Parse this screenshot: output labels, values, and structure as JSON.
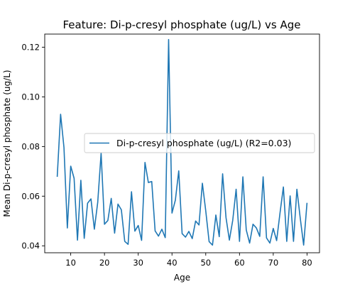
{
  "chart_data": {
    "type": "line",
    "title": "Feature: Di-p-cresyl phosphate (ug/L) vs Age",
    "xlabel": "Age",
    "ylabel": "Mean Di-p-cresyl phosphate (ug/L)",
    "xlim": [
      2.3,
      83.7
    ],
    "ylim": [
      0.0372,
      0.1253
    ],
    "xticks": [
      10,
      20,
      30,
      40,
      50,
      60,
      70,
      80
    ],
    "xtick_labels": [
      "10",
      "20",
      "30",
      "40",
      "50",
      "60",
      "70",
      "80"
    ],
    "yticks": [
      0.04,
      0.06,
      0.08,
      0.1,
      0.12
    ],
    "ytick_labels": [
      "0.04",
      "0.06",
      "0.08",
      "0.10",
      "0.12"
    ],
    "grid": false,
    "legend_position": "center-right",
    "series": [
      {
        "name": "Di-p-cresyl phosphate (ug/L) (R2=0.03)",
        "color": "#1f77b4",
        "x": [
          6,
          7,
          8,
          9,
          10,
          11,
          12,
          13,
          14,
          15,
          16,
          17,
          18,
          19,
          20,
          21,
          22,
          23,
          24,
          25,
          26,
          27,
          28,
          29,
          30,
          31,
          32,
          33,
          34,
          35,
          36,
          37,
          38,
          39,
          40,
          41,
          42,
          43,
          44,
          45,
          46,
          47,
          48,
          49,
          50,
          51,
          52,
          53,
          54,
          55,
          56,
          57,
          58,
          59,
          60,
          61,
          62,
          63,
          64,
          65,
          66,
          67,
          68,
          69,
          70,
          71,
          72,
          73,
          74,
          75,
          76,
          77,
          78,
          79,
          80
        ],
        "y": [
          0.0678,
          0.093,
          0.0796,
          0.0472,
          0.0721,
          0.0672,
          0.0423,
          0.0664,
          0.043,
          0.0572,
          0.0589,
          0.0467,
          0.0575,
          0.0773,
          0.0487,
          0.0502,
          0.0591,
          0.0451,
          0.0568,
          0.0545,
          0.0418,
          0.0406,
          0.0618,
          0.0459,
          0.0482,
          0.0422,
          0.0736,
          0.0655,
          0.0659,
          0.046,
          0.0439,
          0.0467,
          0.0433,
          0.1231,
          0.0532,
          0.0584,
          0.0702,
          0.0449,
          0.0435,
          0.0458,
          0.0429,
          0.05,
          0.0484,
          0.0652,
          0.0541,
          0.0417,
          0.0403,
          0.0524,
          0.0437,
          0.069,
          0.0514,
          0.0423,
          0.0503,
          0.0628,
          0.0418,
          0.0678,
          0.0464,
          0.0411,
          0.0487,
          0.0472,
          0.0438,
          0.0678,
          0.0432,
          0.0411,
          0.047,
          0.0421,
          0.0532,
          0.0637,
          0.0418,
          0.0601,
          0.0418,
          0.0628,
          0.0511,
          0.0403,
          0.0573
        ]
      }
    ]
  }
}
